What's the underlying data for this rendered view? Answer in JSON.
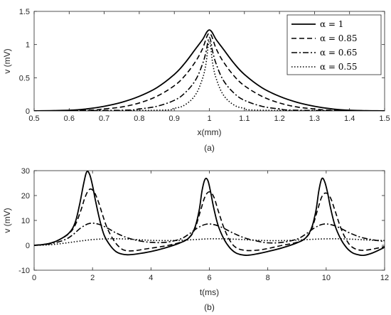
{
  "chart_data": [
    {
      "type": "line",
      "caption": "(a)",
      "xlabel": "x(mm)",
      "ylabel": "v (mV)",
      "xlim": [
        0.5,
        1.5
      ],
      "ylim": [
        0,
        1.5
      ],
      "xticks": [
        0.5,
        0.6,
        0.7,
        0.8,
        0.9,
        1,
        1.1,
        1.2,
        1.3,
        1.4,
        1.5
      ],
      "yticks": [
        0,
        0.5,
        1,
        1.5
      ],
      "xtick_labels": [
        "0.5",
        "0.6",
        "0.7",
        "0.8",
        "0.9",
        "1",
        "1.1",
        "1.2",
        "1.3",
        "1.4",
        "1.5"
      ],
      "ytick_labels": [
        "0",
        "0.5",
        "1",
        "1.5"
      ],
      "legend": "top-right",
      "grid": false,
      "series": [
        {
          "name": "α = 1",
          "style": "solid",
          "x": [
            0.5,
            0.6,
            0.65,
            0.7,
            0.75,
            0.8,
            0.85,
            0.9,
            0.93,
            0.96,
            0.98,
            1.0,
            1.02,
            1.04,
            1.07,
            1.1,
            1.15,
            1.2,
            1.25,
            1.3,
            1.35,
            1.4,
            1.5
          ],
          "y": [
            0.0,
            0.01,
            0.03,
            0.07,
            0.13,
            0.22,
            0.35,
            0.55,
            0.72,
            0.93,
            1.07,
            1.22,
            1.07,
            0.93,
            0.72,
            0.55,
            0.35,
            0.22,
            0.13,
            0.07,
            0.03,
            0.01,
            0.0
          ]
        },
        {
          "name": "α = 0.85",
          "style": "dashed",
          "x": [
            0.5,
            0.65,
            0.7,
            0.75,
            0.8,
            0.85,
            0.9,
            0.93,
            0.96,
            0.98,
            1.0,
            1.02,
            1.04,
            1.07,
            1.1,
            1.15,
            1.2,
            1.25,
            1.3,
            1.35,
            1.5
          ],
          "y": [
            0.0,
            0.01,
            0.03,
            0.06,
            0.12,
            0.22,
            0.38,
            0.53,
            0.74,
            0.93,
            1.17,
            0.93,
            0.74,
            0.53,
            0.38,
            0.22,
            0.12,
            0.06,
            0.03,
            0.01,
            0.0
          ]
        },
        {
          "name": "α = 0.65",
          "style": "dashdot",
          "x": [
            0.5,
            0.75,
            0.8,
            0.85,
            0.9,
            0.93,
            0.96,
            0.98,
            0.99,
            1.0,
            1.01,
            1.02,
            1.04,
            1.07,
            1.1,
            1.15,
            1.2,
            1.25,
            1.5
          ],
          "y": [
            0.0,
            0.01,
            0.03,
            0.07,
            0.16,
            0.27,
            0.46,
            0.7,
            0.88,
            1.11,
            0.88,
            0.7,
            0.46,
            0.27,
            0.16,
            0.07,
            0.03,
            0.01,
            0.0
          ]
        },
        {
          "name": "α = 0.55",
          "style": "dotted",
          "x": [
            0.5,
            0.85,
            0.9,
            0.93,
            0.96,
            0.98,
            0.99,
            1.0,
            1.01,
            1.02,
            1.04,
            1.07,
            1.1,
            1.15,
            1.5
          ],
          "y": [
            0.0,
            0.01,
            0.04,
            0.09,
            0.24,
            0.48,
            0.7,
            1.05,
            0.7,
            0.48,
            0.24,
            0.09,
            0.04,
            0.01,
            0.0
          ]
        }
      ]
    },
    {
      "type": "line",
      "caption": "(b)",
      "xlabel": "t(ms)",
      "ylabel": "v (mV)",
      "xlim": [
        0,
        12
      ],
      "ylim": [
        -10,
        30
      ],
      "xticks": [
        0,
        2,
        4,
        6,
        8,
        10,
        12
      ],
      "yticks": [
        -10,
        0,
        10,
        20,
        30
      ],
      "xtick_labels": [
        "0",
        "2",
        "4",
        "6",
        "8",
        "10",
        "12"
      ],
      "ytick_labels": [
        "-10",
        "0",
        "10",
        "20",
        "30"
      ],
      "grid": false,
      "series": [
        {
          "name": "α = 1",
          "style": "solid",
          "x": [
            0,
            0.3,
            0.6,
            0.9,
            1.2,
            1.4,
            1.55,
            1.7,
            1.8,
            1.9,
            2.0,
            2.1,
            2.25,
            2.4,
            2.6,
            2.8,
            3.0,
            3.2,
            3.5,
            4.0,
            4.5,
            5.0,
            5.3,
            5.5,
            5.65,
            5.75,
            5.85,
            5.95,
            6.05,
            6.15,
            6.3,
            6.5,
            6.7,
            6.9,
            7.1,
            7.3,
            7.6,
            8.0,
            8.5,
            9.0,
            9.3,
            9.5,
            9.65,
            9.75,
            9.85,
            9.95,
            10.05,
            10.15,
            10.3,
            10.5,
            10.7,
            10.9,
            11.1,
            11.3,
            11.6,
            12.0
          ],
          "y": [
            0,
            0.3,
            1.0,
            2.5,
            5.0,
            9.0,
            16.0,
            25.0,
            29.5,
            28.5,
            24.0,
            18.0,
            10.0,
            4.0,
            0.0,
            -2.5,
            -3.5,
            -3.8,
            -3.5,
            -2.5,
            -1.0,
            1.0,
            3.0,
            7.0,
            14.0,
            22.0,
            26.5,
            26.0,
            21.0,
            15.0,
            8.0,
            2.5,
            -1.0,
            -3.0,
            -3.8,
            -4.0,
            -3.5,
            -2.5,
            -1.0,
            1.0,
            3.0,
            7.0,
            14.0,
            22.0,
            26.8,
            25.5,
            21.0,
            15.0,
            8.0,
            2.5,
            -1.0,
            -3.0,
            -3.8,
            -4.0,
            -3.0,
            -0.8
          ]
        },
        {
          "name": "α = 0.85",
          "style": "dashed",
          "x": [
            0,
            0.3,
            0.6,
            0.9,
            1.2,
            1.4,
            1.6,
            1.75,
            1.9,
            2.05,
            2.2,
            2.35,
            2.5,
            2.7,
            2.9,
            3.1,
            3.4,
            3.8,
            4.2,
            4.6,
            5.0,
            5.3,
            5.5,
            5.7,
            5.85,
            6.0,
            6.15,
            6.3,
            6.5,
            6.7,
            6.9,
            7.2,
            7.6,
            8.0,
            8.5,
            9.0,
            9.3,
            9.5,
            9.7,
            9.85,
            10.0,
            10.15,
            10.3,
            10.5,
            10.7,
            10.9,
            11.2,
            11.6,
            12.0
          ],
          "y": [
            0,
            0.3,
            1.0,
            2.5,
            4.8,
            8.0,
            14.0,
            19.5,
            22.5,
            21.5,
            17.5,
            12.0,
            7.0,
            2.5,
            -0.5,
            -2.0,
            -2.2,
            -1.5,
            -0.8,
            0.0,
            1.2,
            3.0,
            6.5,
            14.0,
            19.5,
            21.5,
            19.5,
            14.0,
            7.0,
            2.0,
            -0.8,
            -2.0,
            -2.0,
            -1.3,
            0.0,
            1.2,
            3.0,
            6.5,
            14.0,
            19.5,
            21.0,
            19.0,
            14.0,
            7.0,
            2.0,
            -0.8,
            -2.0,
            -1.5,
            -0.5
          ]
        },
        {
          "name": "α = 0.65",
          "style": "dashdot",
          "x": [
            0,
            0.5,
            1.0,
            1.3,
            1.6,
            1.9,
            2.2,
            2.5,
            2.8,
            3.2,
            3.6,
            4.0,
            4.5,
            5.0,
            5.3,
            5.6,
            5.9,
            6.2,
            6.5,
            6.8,
            7.2,
            7.6,
            8.0,
            8.5,
            9.0,
            9.3,
            9.6,
            9.9,
            10.2,
            10.5,
            10.8,
            11.2,
            11.6,
            12.0
          ],
          "y": [
            0,
            0.5,
            2.0,
            4.0,
            7.0,
            8.8,
            8.5,
            7.0,
            5.0,
            3.0,
            1.8,
            1.2,
            1.2,
            2.5,
            4.5,
            7.0,
            8.5,
            8.2,
            6.8,
            5.0,
            3.0,
            1.8,
            1.0,
            1.2,
            2.5,
            4.5,
            7.0,
            8.5,
            8.2,
            6.8,
            5.0,
            3.2,
            2.2,
            1.5
          ]
        },
        {
          "name": "α = 0.55",
          "style": "dotted",
          "x": [
            0,
            0.5,
            1.0,
            1.5,
            2.0,
            2.5,
            3.0,
            3.5,
            4.0,
            4.5,
            5.0,
            5.5,
            6.0,
            6.5,
            7.0,
            7.5,
            8.0,
            8.5,
            9.0,
            9.5,
            10.0,
            10.5,
            11.0,
            11.5,
            12.0
          ],
          "y": [
            0,
            0.2,
            0.8,
            1.6,
            2.3,
            2.6,
            2.6,
            2.3,
            2.0,
            1.9,
            2.0,
            2.3,
            2.6,
            2.6,
            2.4,
            2.1,
            1.9,
            1.9,
            2.1,
            2.4,
            2.6,
            2.6,
            2.4,
            2.1,
            1.9
          ]
        }
      ]
    }
  ]
}
